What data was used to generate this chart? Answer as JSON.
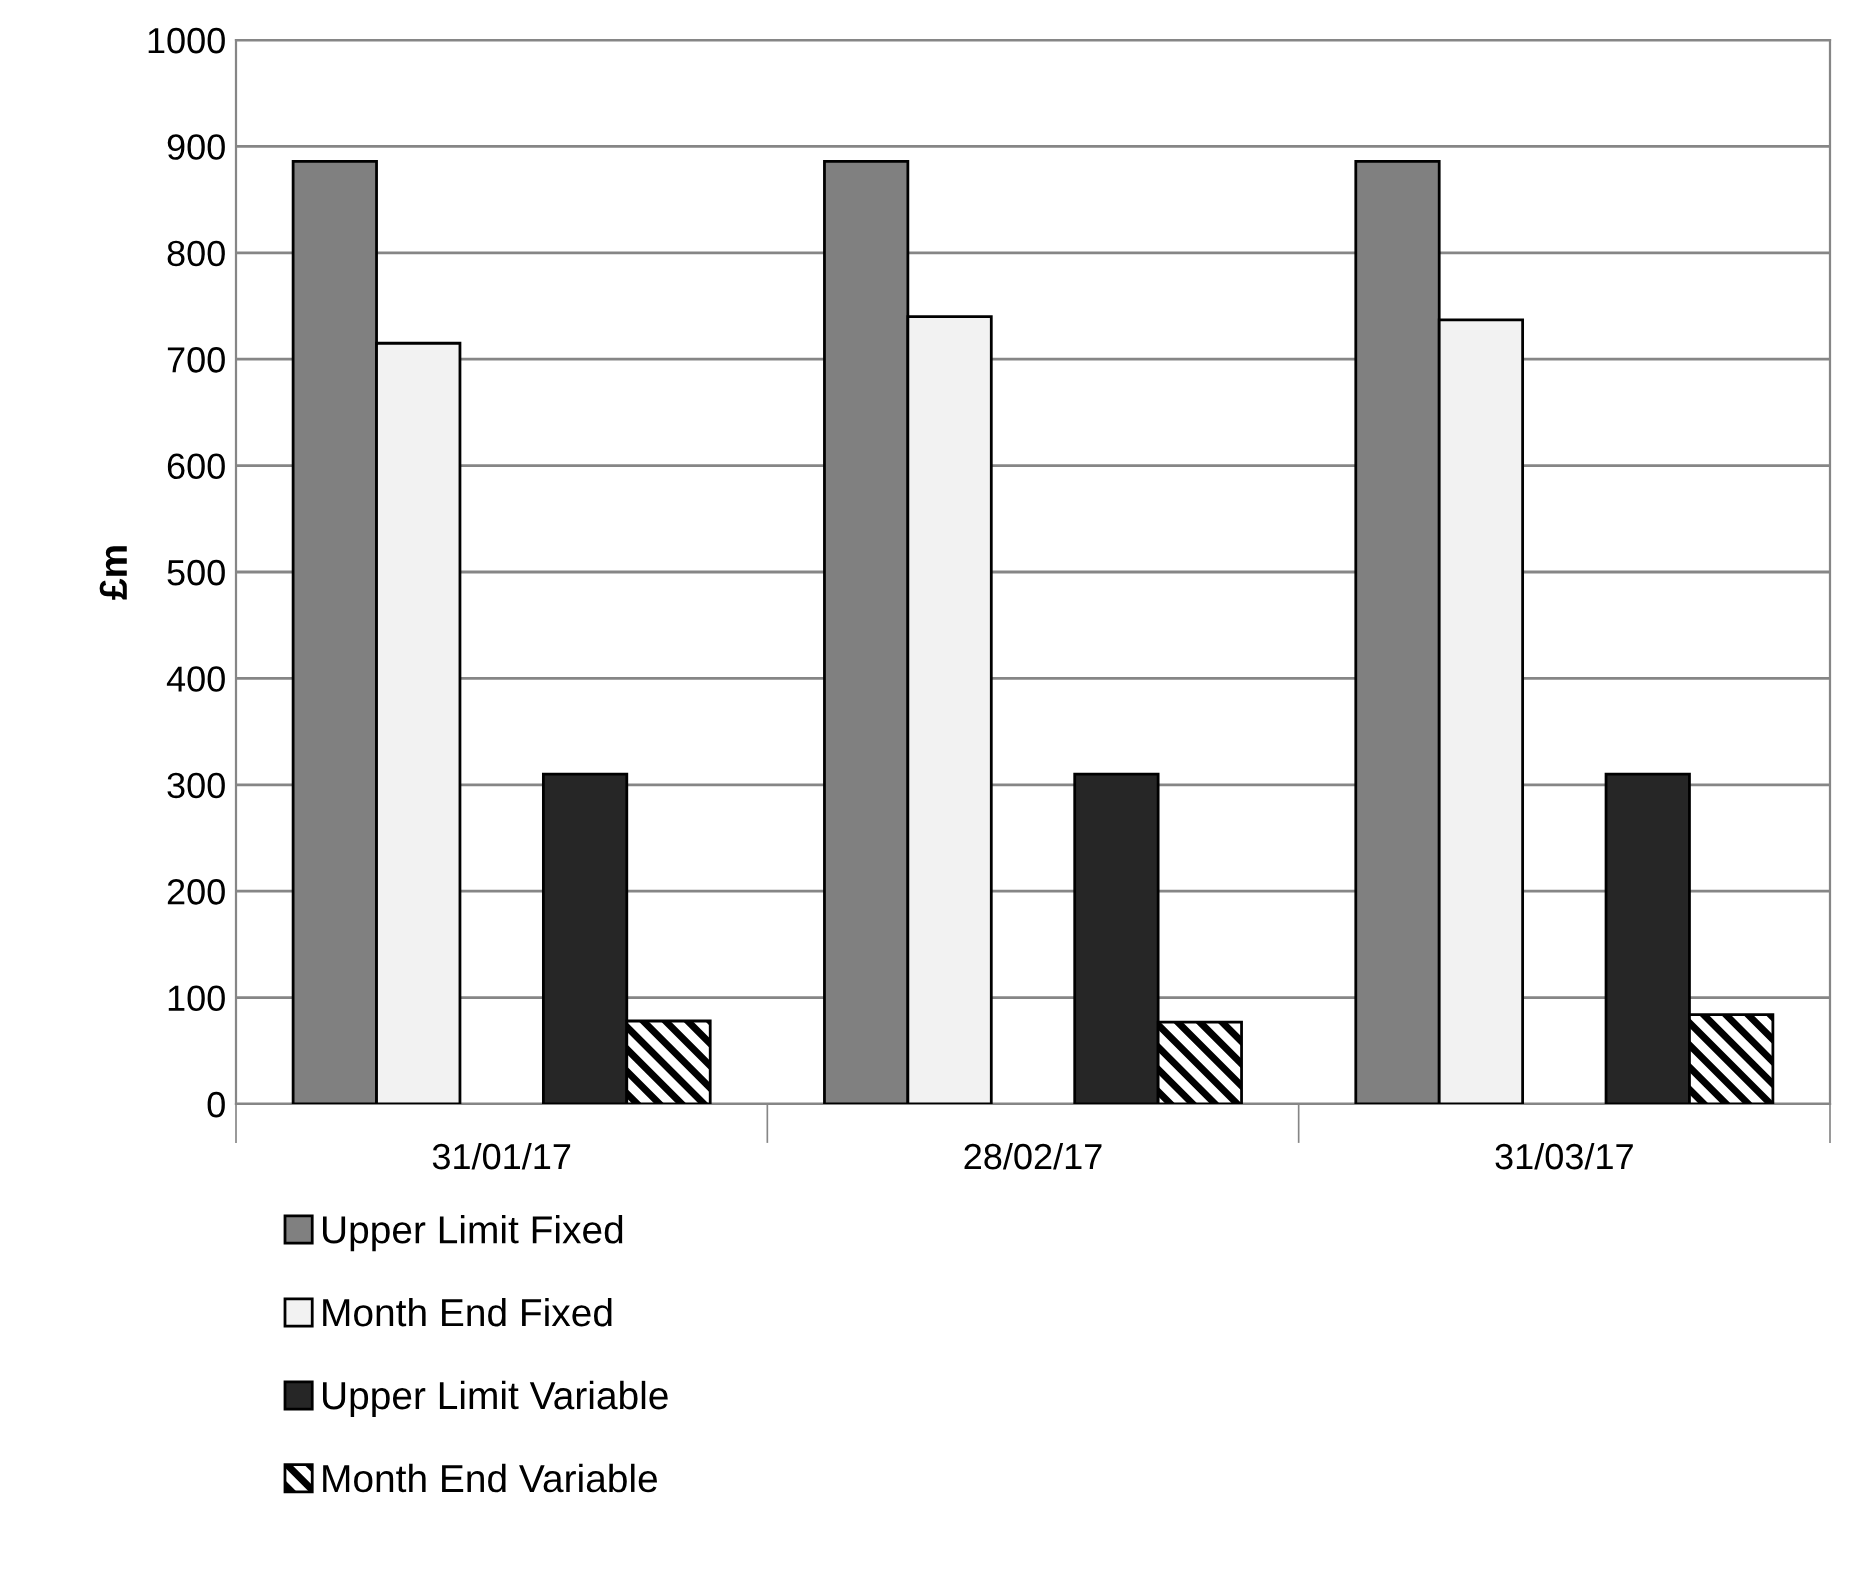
{
  "chart_data": {
    "type": "bar",
    "ylabel": "£m",
    "categories": [
      "31/01/17",
      "28/02/17",
      "31/03/17"
    ],
    "series": [
      {
        "name": "Upper Limit Fixed",
        "color": "#808080",
        "values": [
          886,
          886,
          886
        ]
      },
      {
        "name": "Month End Fixed",
        "color": "#f2f2f2",
        "values": [
          715,
          740,
          737
        ]
      },
      {
        "name": "Upper Limit Variable",
        "color": "#262626",
        "values": [
          310,
          310,
          310
        ]
      },
      {
        "name": "Month End Variable",
        "color": "#000000",
        "values": [
          78,
          77,
          84
        ]
      }
    ],
    "ylim": [
      0,
      1000
    ],
    "yticks": [
      0,
      100,
      200,
      300,
      400,
      500,
      600,
      700,
      800,
      900,
      1000
    ],
    "grid": "y",
    "legend": "bottom"
  }
}
